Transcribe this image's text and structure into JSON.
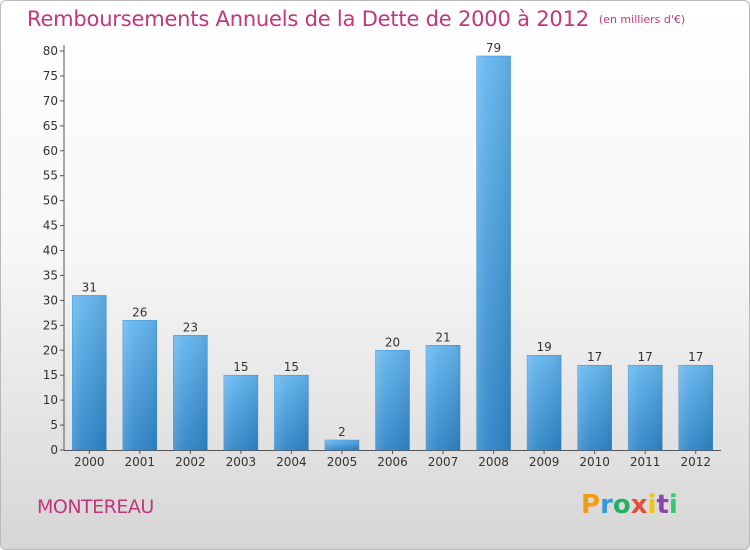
{
  "chart_data": {
    "type": "bar",
    "title": "Remboursements Annuels de la Dette de 2000 à 2012",
    "unit_note": "(en milliers d'€)",
    "categories": [
      "2000",
      "2001",
      "2002",
      "2003",
      "2004",
      "2005",
      "2006",
      "2007",
      "2008",
      "2009",
      "2010",
      "2011",
      "2012"
    ],
    "values": [
      31,
      26,
      23,
      15,
      15,
      2,
      20,
      21,
      79,
      19,
      17,
      17,
      17
    ],
    "ylim": [
      0,
      80
    ],
    "yticks": [
      0,
      5,
      10,
      15,
      20,
      25,
      30,
      35,
      40,
      45,
      50,
      55,
      60,
      65,
      70,
      75,
      80
    ],
    "grid": false,
    "bar_color": "#5aaeea",
    "bar_color_dark": "#2f86c8"
  },
  "city": "MONTEREAU",
  "logo": {
    "letters": [
      "P",
      "r",
      "o",
      "x",
      "i",
      "t",
      "i"
    ]
  }
}
